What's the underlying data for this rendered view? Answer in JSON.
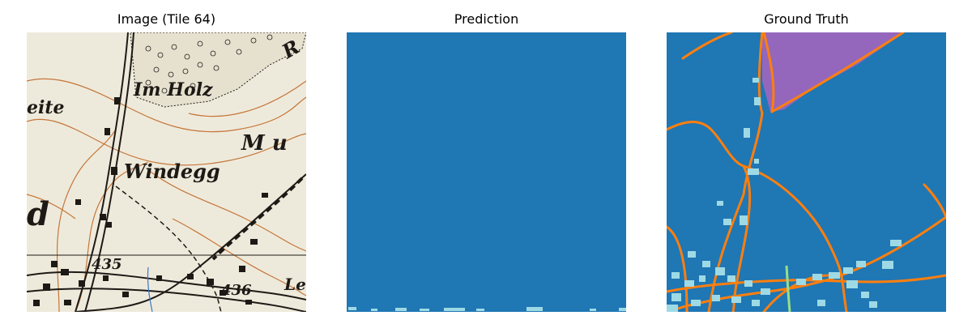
{
  "panels": [
    {
      "title": "Image (Tile 64)"
    },
    {
      "title": "Prediction"
    },
    {
      "title": "Ground Truth"
    }
  ],
  "map_labels": {
    "im_holz": "Im Holz",
    "windegg": "Windegg",
    "mu": "M u",
    "eite": "eite",
    "d": "d",
    "r": "R",
    "le": "Le",
    "spot_435": "435",
    "spot_436": "436"
  },
  "colors": {
    "background_class": "#1f77b4",
    "road_class": "#ff7f0e",
    "building_class": "#9edae5",
    "forest_class": "#9467bd",
    "stream_class": "#98df8a",
    "paper": "#eeeadb",
    "contour": "#c5763a",
    "ink": "#1d1a16",
    "water_line": "#3a78c8"
  }
}
